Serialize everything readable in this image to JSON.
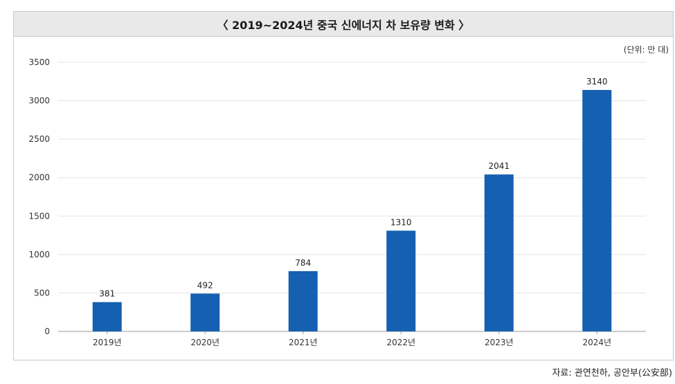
{
  "title": "〈 2019~2024년 중국 신에너지 차 보유량 변화 〉",
  "unit_label": "(단위: 만 대)",
  "source": "자료: 관연천하, 공안부(公安部)",
  "colors": {
    "bar": "#1560b0",
    "grid": "#e3e3e3",
    "axis": "#999999",
    "title_bg": "#e9e9e9"
  },
  "chart_data": {
    "type": "bar",
    "title": "〈 2019~2024년 중국 신에너지 차 보유량 변화 〉",
    "categories": [
      "2019년",
      "2020년",
      "2021년",
      "2022년",
      "2023년",
      "2024년"
    ],
    "values": [
      381,
      492,
      784,
      1310,
      2041,
      3140
    ],
    "value_labels": [
      "381",
      "492",
      "784",
      "1310",
      "2041",
      "3140"
    ],
    "ylim": [
      0,
      3500
    ],
    "yticks": [
      0,
      500,
      1000,
      1500,
      2000,
      2500,
      3000,
      3500
    ],
    "ytick_labels": [
      "0",
      "500",
      "1000",
      "1500",
      "2000",
      "2500",
      "3000",
      "3500"
    ],
    "grid": true,
    "legend": "none",
    "xlabel": "",
    "ylabel": ""
  }
}
